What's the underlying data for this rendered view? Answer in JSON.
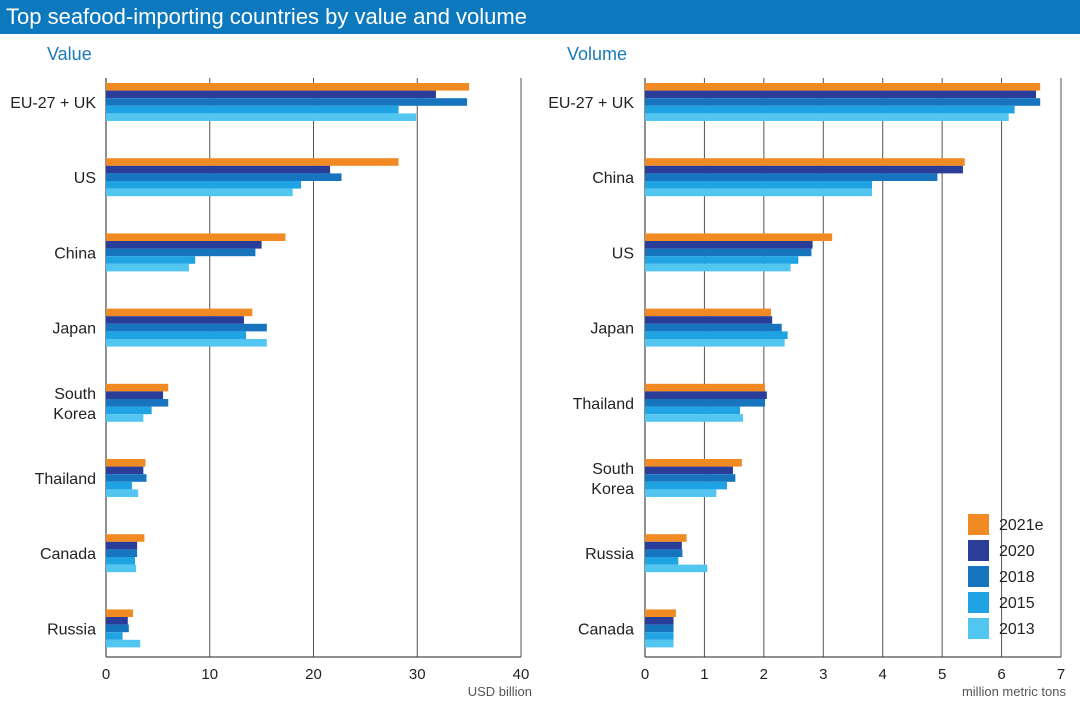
{
  "title": "Top seafood-importing countries by value and volume",
  "colors": {
    "title_bg": "#0c78bd",
    "panel_title": "#1a7ab8",
    "2021e": "#f28a24",
    "2020": "#2a3d98",
    "2018": "#1775bf",
    "2015": "#20a3e2",
    "2013": "#53c5f1"
  },
  "legend": [
    {
      "name": "2021e",
      "color": "#f28a24"
    },
    {
      "name": "2020",
      "color": "#2a3d98"
    },
    {
      "name": "2018",
      "color": "#1775bf"
    },
    {
      "name": "2015",
      "color": "#20a3e2"
    },
    {
      "name": "2013",
      "color": "#53c5f1"
    }
  ],
  "chart_data": [
    {
      "type": "bar",
      "orientation": "horizontal",
      "title": "Value",
      "xlabel": "USD billion",
      "xlim": [
        0,
        40
      ],
      "xticks": [
        0,
        10,
        20,
        30,
        40
      ],
      "grid": true,
      "categories": [
        [
          "EU-27 + UK"
        ],
        [
          "US"
        ],
        [
          "China"
        ],
        [
          "Japan"
        ],
        [
          "South",
          "Korea"
        ],
        [
          "Thailand"
        ],
        [
          "Canada"
        ],
        [
          "Russia"
        ]
      ],
      "series": [
        {
          "name": "2021e",
          "values": [
            35.0,
            28.2,
            17.3,
            14.1,
            6.0,
            3.8,
            3.7,
            2.6
          ]
        },
        {
          "name": "2020",
          "values": [
            31.8,
            21.6,
            15.0,
            13.3,
            5.5,
            3.6,
            3.0,
            2.1
          ]
        },
        {
          "name": "2018",
          "values": [
            34.8,
            22.7,
            14.4,
            15.5,
            6.0,
            3.9,
            3.0,
            2.2
          ]
        },
        {
          "name": "2015",
          "values": [
            28.2,
            18.8,
            8.6,
            13.5,
            4.4,
            2.5,
            2.8,
            1.6
          ]
        },
        {
          "name": "2013",
          "values": [
            29.9,
            18.0,
            8.0,
            15.5,
            3.6,
            3.1,
            2.9,
            3.3
          ]
        }
      ]
    },
    {
      "type": "bar",
      "orientation": "horizontal",
      "title": "Volume",
      "xlabel": "million metric tons",
      "xlim": [
        0,
        7
      ],
      "xticks": [
        0,
        1,
        2,
        3,
        4,
        5,
        6,
        7
      ],
      "grid": true,
      "legend_position": "bottom-right",
      "categories": [
        [
          "EU-27 + UK"
        ],
        [
          "China"
        ],
        [
          "US"
        ],
        [
          "Japan"
        ],
        [
          "Thailand"
        ],
        [
          "South",
          "Korea"
        ],
        [
          "Russia"
        ],
        [
          "Canada"
        ]
      ],
      "series": [
        {
          "name": "2021e",
          "values": [
            6.65,
            5.38,
            3.15,
            2.12,
            2.02,
            1.63,
            0.7,
            0.52
          ]
        },
        {
          "name": "2020",
          "values": [
            6.58,
            5.35,
            2.82,
            2.14,
            2.05,
            1.48,
            0.62,
            0.48
          ]
        },
        {
          "name": "2018",
          "values": [
            6.65,
            4.92,
            2.8,
            2.3,
            2.02,
            1.52,
            0.63,
            0.48
          ]
        },
        {
          "name": "2015",
          "values": [
            6.22,
            3.82,
            2.58,
            2.4,
            1.6,
            1.38,
            0.56,
            0.48
          ]
        },
        {
          "name": "2013",
          "values": [
            6.12,
            3.82,
            2.45,
            2.35,
            1.65,
            1.2,
            1.05,
            0.48
          ]
        }
      ]
    }
  ]
}
